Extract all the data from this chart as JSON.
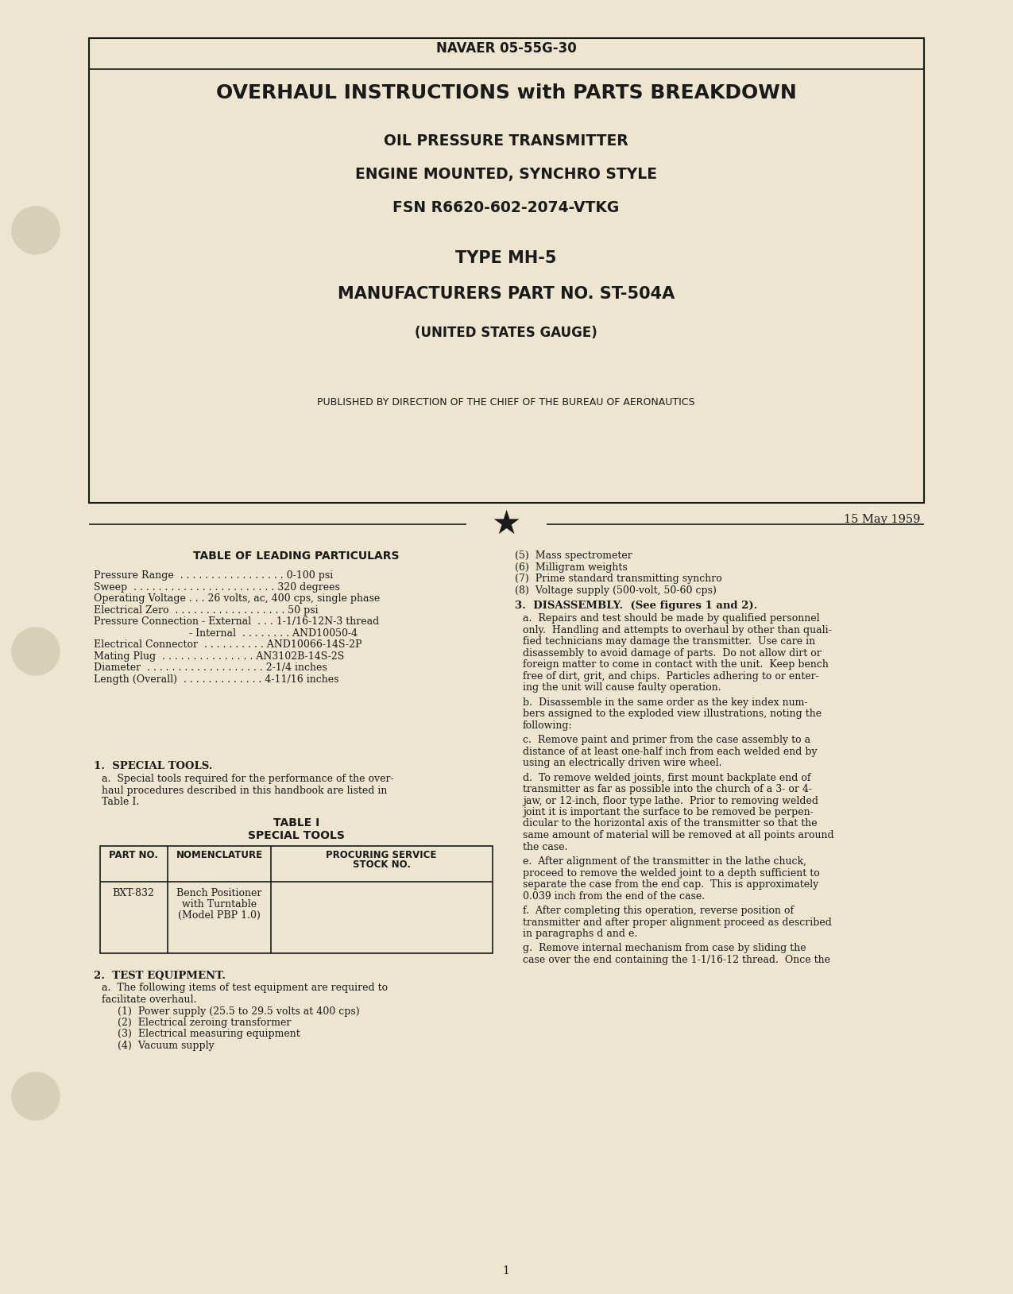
{
  "page_bg": "#ede5cf",
  "doc_number": "NAVAER 05-55G-30",
  "title_line1": "OVERHAUL INSTRUCTIONS with PARTS BREAKDOWN",
  "title_line2": "OIL PRESSURE TRANSMITTER",
  "title_line3": "ENGINE MOUNTED, SYNCHRO STYLE",
  "title_line4": "FSN R6620-602-2074-VTKG",
  "title_line5": "TYPE MH-5",
  "title_line6": "MANUFACTURERS PART NO. ST-504A",
  "title_line7": "(UNITED STATES GAUGE)",
  "published_line": "PUBLISHED BY DIRECTION OF THE CHIEF OF THE BUREAU OF AERONAUTICS",
  "date_line": "15 May 1959",
  "particulars_title": "TABLE OF LEADING PARTICULARS",
  "particulars": [
    [
      "Pressure Range",
      "0-100 psi"
    ],
    [
      "Sweep",
      "320 degrees"
    ],
    [
      "Operating Voltage . . . 26 volts, ac, 400 cps, single phase",
      ""
    ],
    [
      "Electrical Zero",
      "50 psi"
    ],
    [
      "Pressure Connection - External . . . 1-1/16-12N-3 thread",
      ""
    ],
    [
      "                            - Internal . . . . . . . . AND10050-4",
      ""
    ],
    [
      "Electrical Connector . . . . . . . . . . AND10066-14S-2P",
      ""
    ],
    [
      "Mating Plug . . . . . . . . . . . . . . AN3102B-14S-2S",
      ""
    ],
    [
      "Diameter",
      "2-1/4 inches"
    ],
    [
      "Length (Overall)",
      "4-11/16 inches"
    ]
  ],
  "particulars_raw": [
    "Pressure Range  . . . . . . . . . . . . . . . . . 0-100 psi",
    "Sweep  . . . . . . . . . . . . . . . . . . . . . . . 320 degrees",
    "Operating Voltage . . . 26 volts, ac, 400 cps, single phase",
    "Electrical Zero  . . . . . . . . . . . . . . . . . . 50 psi",
    "Pressure Connection - External  . . . 1-1/16-12N-3 thread",
    "                              - Internal  . . . . . . . . AND10050-4",
    "Electrical Connector  . . . . . . . . . . AND10066-14S-2P",
    "Mating Plug  . . . . . . . . . . . . . . . AN3102B-14S-2S",
    "Diameter  . . . . . . . . . . . . . . . . . . . 2-1/4 inches",
    "Length (Overall)  . . . . . . . . . . . . . 4-11/16 inches"
  ],
  "section1_title": "1.  SPECIAL TOOLS.",
  "section1_a": "a.  Special tools required for the performance of the over-haul procedures described in this handbook are listed in Table I.",
  "table_title1": "TABLE I",
  "table_title2": "SPECIAL TOOLS",
  "section2_title": "2.  TEST EQUIPMENT.",
  "section2_a": "a.  The following items of test equipment are required to facilitate overhaul.",
  "test_items": [
    "(1)  Power supply (25.5 to 29.5 volts at 400 cps)",
    "(2)  Electrical zeroing transformer",
    "(3)  Electrical measuring equipment",
    "(4)  Vacuum supply"
  ],
  "right_items": [
    "(5)  Mass spectrometer",
    "(6)  Milligram weights",
    "(7)  Prime standard transmitting synchro",
    "(8)  Voltage supply (500-volt, 50-60 cps)"
  ],
  "section3_title": "3.  DISASSEMBLY.  (See figures 1 and 2).",
  "section3_a": [
    "a.  Repairs and test should be made by qualified personnel",
    "only.  Handling and attempts to overhaul by other than quali-",
    "fied technicians may damage the transmitter.  Use care in",
    "disassembly to avoid damage of parts.  Do not allow dirt or",
    "foreign matter to come in contact with the unit.  Keep bench",
    "free of dirt, grit, and chips.  Particles adhering to or enter-",
    "ing the unit will cause faulty operation."
  ],
  "section3_b": [
    "b.  Disassemble in the same order as the key index num-",
    "bers assigned to the exploded view illustrations, noting the",
    "following:"
  ],
  "section3_c": [
    "c.  Remove paint and primer from the case assembly to a",
    "distance of at least one-half inch from each welded end by",
    "using an electrically driven wire wheel."
  ],
  "section3_d": [
    "d.  To remove welded joints, first mount backplate end of",
    "transmitter as far as possible into the church of a 3- or 4-",
    "jaw, or 12-inch, floor type lathe.  Prior to removing welded",
    "joint it is important the surface to be removed be perpen-",
    "dicular to the horizontal axis of the transmitter so that the",
    "same amount of material will be removed at all points around",
    "the case."
  ],
  "section3_e": [
    "e.  After alignment of the transmitter in the lathe chuck,",
    "proceed to remove the welded joint to a depth sufficient to",
    "separate the case from the end cap.  This is approximately",
    "0.039 inch from the end of the case."
  ],
  "section3_f": [
    "f.  After completing this operation, reverse position of",
    "transmitter and after proper alignment proceed as described",
    "in paragraphs d and e."
  ],
  "section3_g": [
    "g.  Remove internal mechanism from case by sliding the",
    "case over the end containing the 1-1/16-12 thread.  Once the"
  ],
  "page_number": "1"
}
